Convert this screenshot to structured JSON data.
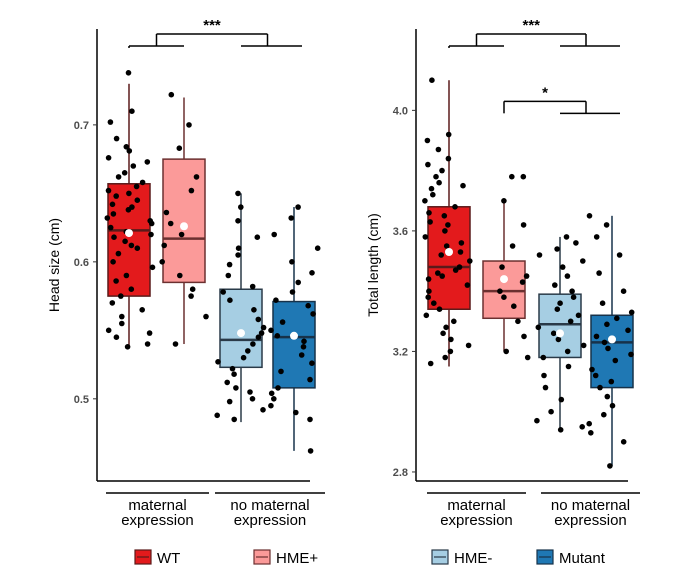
{
  "chart_data": [
    {
      "type": "box",
      "ylabel": "Head size (cm)",
      "ylim": [
        0.44,
        0.77
      ],
      "yticks": [
        "0.5",
        "0.6",
        "0.7"
      ],
      "groups": [
        {
          "name": "WT",
          "whisker_low": 0.537,
          "q1": 0.575,
          "median": 0.623,
          "q3": 0.657,
          "whisker_high": 0.73,
          "mean": 0.621,
          "points": [
            0.738,
            0.71,
            0.702,
            0.69,
            0.684,
            0.681,
            0.676,
            0.673,
            0.67,
            0.665,
            0.662,
            0.658,
            0.655,
            0.652,
            0.65,
            0.648,
            0.645,
            0.642,
            0.64,
            0.638,
            0.635,
            0.632,
            0.63,
            0.628,
            0.625,
            0.622,
            0.62,
            0.618,
            0.615,
            0.612,
            0.61,
            0.606,
            0.6,
            0.596,
            0.59,
            0.586,
            0.58,
            0.575,
            0.57,
            0.565,
            0.56,
            0.555,
            0.55,
            0.548,
            0.545,
            0.54,
            0.538
          ]
        },
        {
          "name": "HME+",
          "whisker_low": 0.54,
          "q1": 0.585,
          "median": 0.617,
          "q3": 0.675,
          "whisker_high": 0.72,
          "mean": 0.626,
          "points": [
            0.722,
            0.7,
            0.683,
            0.662,
            0.652,
            0.636,
            0.628,
            0.62,
            0.612,
            0.6,
            0.59,
            0.58,
            0.575,
            0.56,
            0.54
          ]
        },
        {
          "name": "HME-",
          "whisker_low": 0.483,
          "q1": 0.523,
          "median": 0.543,
          "q3": 0.58,
          "whisker_high": 0.65,
          "mean": 0.548,
          "points": [
            0.65,
            0.64,
            0.63,
            0.618,
            0.61,
            0.605,
            0.598,
            0.59,
            0.582,
            0.578,
            0.572,
            0.565,
            0.558,
            0.552,
            0.548,
            0.545,
            0.54,
            0.535,
            0.53,
            0.527,
            0.522,
            0.518,
            0.512,
            0.508,
            0.505,
            0.5,
            0.498,
            0.492,
            0.488,
            0.485
          ]
        },
        {
          "name": "Mutant",
          "whisker_low": 0.462,
          "q1": 0.508,
          "median": 0.545,
          "q3": 0.571,
          "whisker_high": 0.64,
          "mean": 0.546,
          "points": [
            0.64,
            0.632,
            0.62,
            0.61,
            0.6,
            0.592,
            0.585,
            0.578,
            0.572,
            0.568,
            0.562,
            0.556,
            0.55,
            0.546,
            0.542,
            0.538,
            0.532,
            0.526,
            0.52,
            0.514,
            0.508,
            0.504,
            0.5,
            0.495,
            0.49,
            0.485,
            0.462
          ]
        }
      ],
      "annotations": [
        {
          "label": "***",
          "from": [
            "WT",
            "HME+"
          ],
          "to": [
            "HME-",
            "Mutant"
          ]
        }
      ],
      "group_labels": [
        {
          "lines": [
            "maternal",
            "expression"
          ],
          "spans": [
            "WT",
            "HME+"
          ]
        },
        {
          "lines": [
            "no maternal",
            "expression"
          ],
          "spans": [
            "HME-",
            "Mutant"
          ]
        }
      ]
    },
    {
      "type": "box",
      "ylabel": "Total length (cm)",
      "ylim": [
        2.77,
        4.27
      ],
      "yticks": [
        "2.8",
        "3.2",
        "3.6",
        "4.0"
      ],
      "groups": [
        {
          "name": "WT",
          "whisker_low": 3.15,
          "q1": 3.34,
          "median": 3.48,
          "q3": 3.68,
          "whisker_high": 4.1,
          "mean": 3.53,
          "points": [
            4.1,
            3.92,
            3.9,
            3.87,
            3.84,
            3.82,
            3.8,
            3.78,
            3.76,
            3.75,
            3.74,
            3.72,
            3.7,
            3.68,
            3.66,
            3.65,
            3.63,
            3.62,
            3.6,
            3.58,
            3.56,
            3.55,
            3.53,
            3.52,
            3.5,
            3.48,
            3.47,
            3.46,
            3.45,
            3.44,
            3.42,
            3.4,
            3.38,
            3.36,
            3.34,
            3.32,
            3.3,
            3.28,
            3.26,
            3.24,
            3.22,
            3.2,
            3.18,
            3.16
          ]
        },
        {
          "name": "HME+",
          "whisker_low": 3.2,
          "q1": 3.31,
          "median": 3.4,
          "q3": 3.5,
          "whisker_high": 3.7,
          "mean": 3.44,
          "points": [
            3.78,
            3.78,
            3.7,
            3.62,
            3.55,
            3.48,
            3.45,
            3.43,
            3.4,
            3.38,
            3.35,
            3.3,
            3.25,
            3.2,
            3.18
          ]
        },
        {
          "name": "HME-",
          "whisker_low": 2.94,
          "q1": 3.18,
          "median": 3.29,
          "q3": 3.39,
          "whisker_high": 3.58,
          "mean": 3.26,
          "points": [
            3.58,
            3.56,
            3.54,
            3.52,
            3.5,
            3.48,
            3.45,
            3.42,
            3.4,
            3.38,
            3.36,
            3.34,
            3.32,
            3.3,
            3.28,
            3.26,
            3.24,
            3.22,
            3.2,
            3.18,
            3.15,
            3.12,
            3.08,
            3.04,
            3.0,
            2.97,
            2.95,
            2.94
          ]
        },
        {
          "name": "Mutant",
          "whisker_low": 2.82,
          "q1": 3.08,
          "median": 3.23,
          "q3": 3.32,
          "whisker_high": 3.65,
          "mean": 3.24,
          "points": [
            3.65,
            3.62,
            3.58,
            3.52,
            3.46,
            3.4,
            3.36,
            3.33,
            3.31,
            3.29,
            3.27,
            3.25,
            3.23,
            3.21,
            3.19,
            3.17,
            3.14,
            3.12,
            3.1,
            3.08,
            3.05,
            3.02,
            2.99,
            2.96,
            2.93,
            2.9,
            2.82
          ]
        }
      ],
      "annotations": [
        {
          "label": "***",
          "from": [
            "WT",
            "HME+"
          ],
          "to": [
            "HME-",
            "Mutant"
          ]
        },
        {
          "label": "*",
          "from": [
            "HME+"
          ],
          "to": [
            "HME-",
            "Mutant"
          ]
        }
      ],
      "group_labels": [
        {
          "lines": [
            "maternal",
            "expression"
          ],
          "spans": [
            "WT",
            "HME+"
          ]
        },
        {
          "lines": [
            "no maternal",
            "expression"
          ],
          "spans": [
            "HME-",
            "Mutant"
          ]
        }
      ]
    }
  ],
  "legend": [
    {
      "name": "WT",
      "color": "#e31a1c"
    },
    {
      "name": "HME+",
      "color": "#fb9a99"
    },
    {
      "name": "HME-",
      "color": "#a6cee3"
    },
    {
      "name": "Mutant",
      "color": "#1f78b4"
    }
  ]
}
